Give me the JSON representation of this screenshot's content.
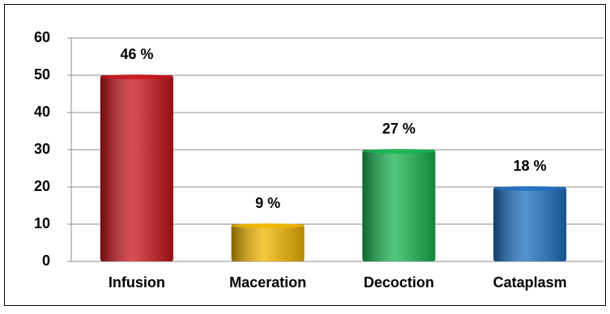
{
  "chart_data": {
    "type": "bar",
    "categories": [
      "Infusion",
      "Maceration",
      "Decoction",
      "Cataplasm"
    ],
    "values": [
      50,
      10,
      30,
      20
    ],
    "annotations": [
      "46 %",
      "9 %",
      "27 %",
      "18 %"
    ],
    "colors": [
      "#c8141c",
      "#f2b600",
      "#18b450",
      "#1d6fbf"
    ],
    "ylim": [
      0,
      60
    ],
    "yticks": [
      0,
      10,
      20,
      30,
      40,
      50,
      60
    ],
    "grid": true
  }
}
